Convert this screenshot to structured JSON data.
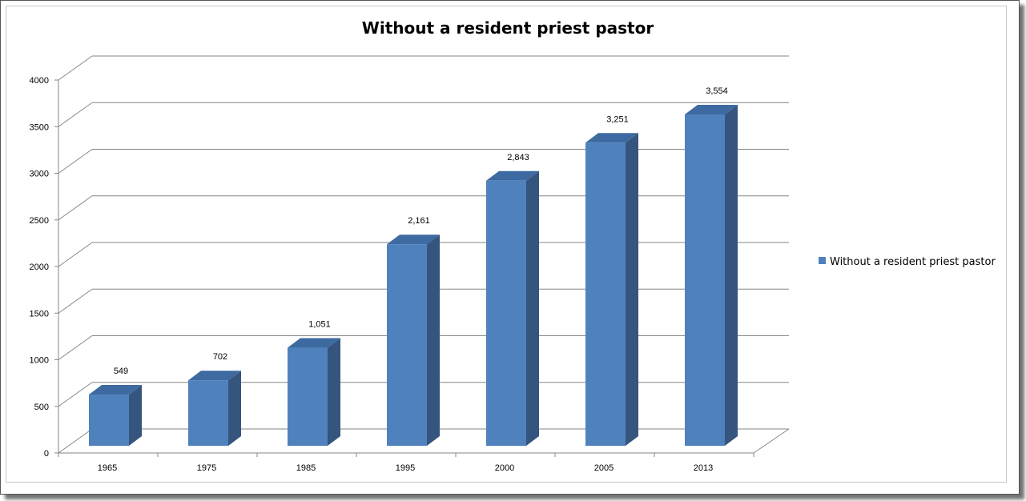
{
  "chart_data": {
    "type": "bar",
    "title": "Without a resident priest pastor",
    "categories": [
      "1965",
      "1975",
      "1985",
      "1995",
      "2000",
      "2005",
      "2013"
    ],
    "series": [
      {
        "name": "Without a resident priest pastor",
        "values": [
          549,
          702,
          1051,
          2161,
          2843,
          3251,
          3554
        ],
        "labels": [
          "549",
          "702",
          "1,051",
          "2,161",
          "2,843",
          "3,251",
          "3,554"
        ]
      }
    ],
    "yticks": [
      "0",
      "500",
      "1000",
      "1500",
      "2000",
      "2500",
      "3000",
      "3500",
      "4000"
    ],
    "ylim": [
      0,
      4000
    ],
    "grid": true,
    "legend_position": "right",
    "colors": {
      "front": "#4f81bd",
      "top": "#3d6aa1",
      "side": "#35557e"
    }
  }
}
